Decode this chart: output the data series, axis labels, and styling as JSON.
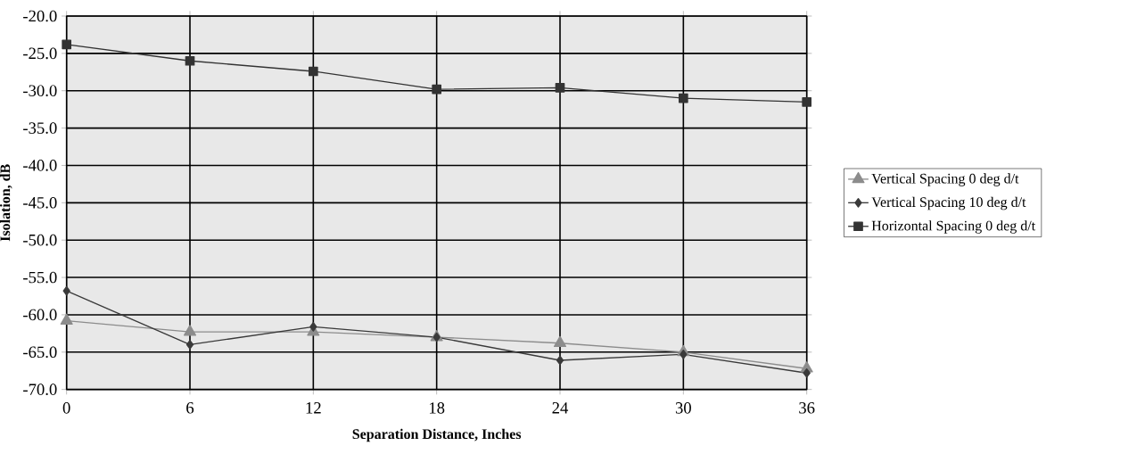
{
  "chart_data": {
    "type": "line",
    "xlabel": "Separation Distance, Inches",
    "ylabel": "Isolation, dB",
    "x": [
      0,
      6,
      12,
      18,
      24,
      30,
      36
    ],
    "series": [
      {
        "name": "Vertical Spacing 0 deg d/t",
        "color": "#8c8c8c",
        "marker": "triangle",
        "values": [
          -60.8,
          -62.3,
          -62.3,
          -63.0,
          -63.8,
          -65.0,
          -67.2
        ]
      },
      {
        "name": "Vertical Spacing 10 deg d/t",
        "color": "#3a3a3a",
        "marker": "diamond",
        "values": [
          -56.8,
          -64.0,
          -61.6,
          -63.0,
          -66.1,
          -65.3,
          -67.8
        ]
      },
      {
        "name": "Horizontal Spacing 0 deg d/t",
        "color": "#333333",
        "marker": "square",
        "values": [
          -23.8,
          -26.0,
          -27.4,
          -29.8,
          -29.6,
          -31.0,
          -31.5
        ]
      }
    ],
    "xlim": [
      0,
      36
    ],
    "xticks": [
      0,
      6,
      12,
      18,
      24,
      30,
      36
    ],
    "ylim": [
      -70,
      -20
    ],
    "yticks": [
      {
        "value": -70,
        "label": "-70.0"
      },
      {
        "value": -65,
        "label": "-65.0"
      },
      {
        "value": -60,
        "label": "-60.0"
      },
      {
        "value": -55,
        "label": "-55.0"
      },
      {
        "value": -50,
        "label": "-50.0"
      },
      {
        "value": -45,
        "label": "-45.0"
      },
      {
        "value": -40,
        "label": "-40.0"
      },
      {
        "value": -35,
        "label": "-35.0"
      },
      {
        "value": -30,
        "label": "-30.0"
      },
      {
        "value": -25,
        "label": "-25.0"
      },
      {
        "value": -20,
        "label": "-20.0"
      }
    ],
    "grid": true,
    "legend": "right",
    "line_style": "solid"
  }
}
